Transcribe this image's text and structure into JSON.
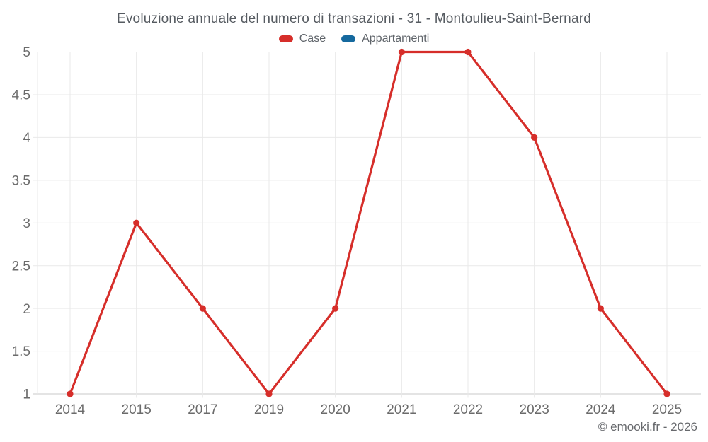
{
  "chart_data": {
    "type": "line",
    "title": "Evoluzione annuale del numero di transazioni - 31 - Montoulieu-Saint-Bernard",
    "categories": [
      "2014",
      "2015",
      "2017",
      "2019",
      "2020",
      "2021",
      "2022",
      "2023",
      "2024",
      "2025"
    ],
    "series": [
      {
        "name": "Case",
        "color": "#d62e2a",
        "values": [
          1,
          3,
          2,
          1,
          2,
          5,
          5,
          4,
          2,
          1
        ]
      },
      {
        "name": "Appartamenti",
        "color": "#15699e",
        "values": []
      }
    ],
    "xlabel": "",
    "ylabel": "",
    "ylim": [
      1,
      5
    ],
    "yticks": [
      5,
      4.5,
      4,
      3.5,
      3,
      2.5,
      2,
      1.5,
      1
    ],
    "grid": true,
    "legend_position": "top"
  },
  "watermark": "© emooki.fr - 2026",
  "colors": {
    "background": "#ffffff",
    "grid_line": "#e9e9e9",
    "axis_line": "#c8c8c8",
    "tick_label": "#6b6b6b",
    "title_text": "#565b61",
    "legend_text": "#5f646a",
    "watermark_text": "#67696d"
  }
}
